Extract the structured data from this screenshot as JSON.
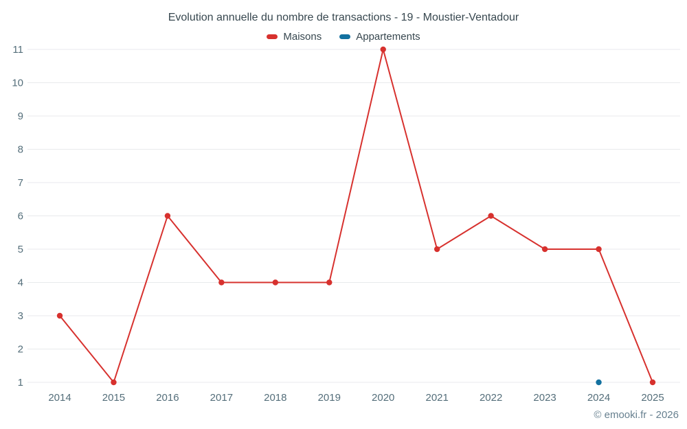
{
  "header": {
    "title": "Evolution annuelle du nombre de transactions - 19 - Moustier-Ventadour"
  },
  "legend": {
    "items": [
      {
        "label": "Maisons",
        "color": "#d7312e"
      },
      {
        "label": "Appartements",
        "color": "#1371a0"
      }
    ]
  },
  "footer": {
    "watermark": "© emooki.fr - 2026"
  },
  "chart_data": {
    "type": "line",
    "title": "Evolution annuelle du nombre de transactions - 19 - Moustier-Ventadour",
    "x": [
      2014,
      2015,
      2016,
      2017,
      2018,
      2019,
      2020,
      2021,
      2022,
      2023,
      2024,
      2025
    ],
    "series": [
      {
        "name": "Maisons",
        "color": "#d7312e",
        "values": [
          3,
          1,
          6,
          4,
          4,
          4,
          11,
          5,
          6,
          5,
          5,
          1
        ]
      },
      {
        "name": "Appartements",
        "color": "#1371a0",
        "values": [
          null,
          null,
          null,
          null,
          null,
          null,
          null,
          null,
          null,
          null,
          1,
          null
        ]
      }
    ],
    "xlabel": "",
    "ylabel": "",
    "ylim": [
      1,
      11
    ],
    "yticks": [
      1,
      2,
      3,
      4,
      5,
      6,
      7,
      8,
      9,
      10,
      11
    ],
    "grid": true,
    "grid_color": "#e8eaec",
    "axis_text_color": "#546e7a",
    "legend_position": "top"
  }
}
